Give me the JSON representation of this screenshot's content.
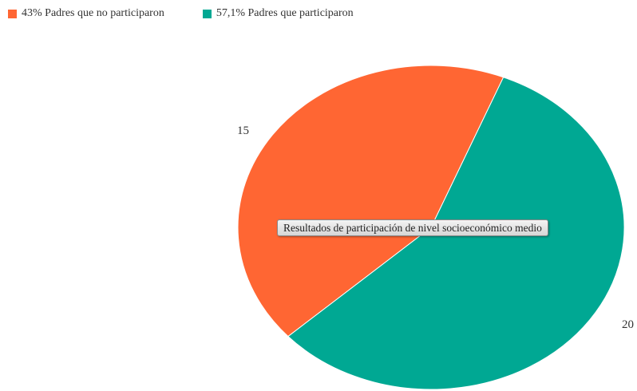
{
  "chart_data": {
    "type": "pie",
    "title": "Resultados de participación de nivel socioeconómico medio",
    "slices": [
      {
        "legend": "43% Padres que no participaron",
        "value": 15,
        "value_label": "15",
        "color": "#ff6633"
      },
      {
        "legend": "57,1% Padres que participaron",
        "value": 20,
        "value_label": "20",
        "color": "#00a893"
      }
    ],
    "legend_position": "top-left"
  }
}
